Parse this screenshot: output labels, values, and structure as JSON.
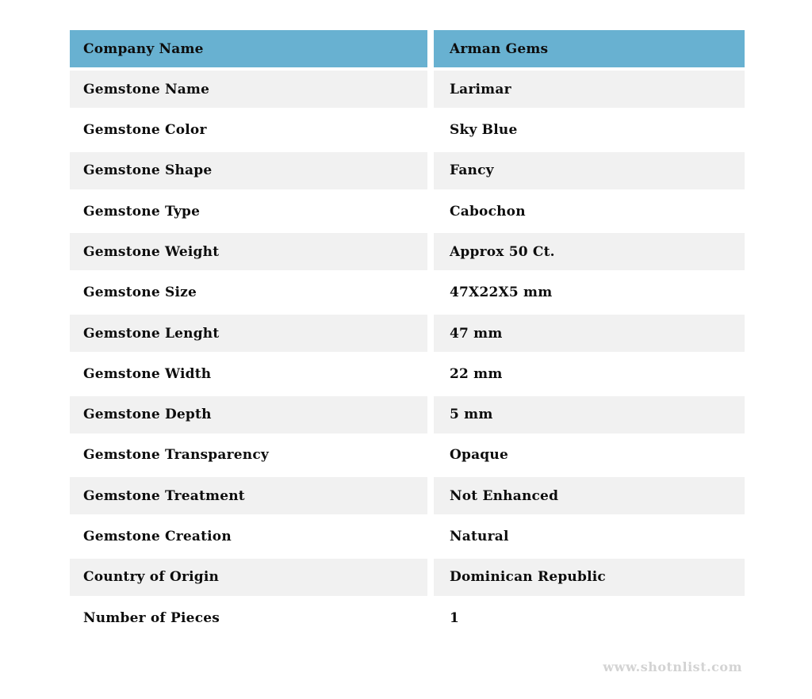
{
  "colors": {
    "header_bg": "#68b1d1",
    "stripe_bg": "#f1f1f1",
    "row_bg": "#ffffff",
    "text": "#0d0d0d",
    "watermark": "#d3d3d3"
  },
  "table": {
    "header": {
      "label": "Company Name",
      "value": "Arman Gems"
    },
    "rows": [
      {
        "label": "Gemstone Name",
        "value": "Larimar"
      },
      {
        "label": "Gemstone Color",
        "value": "Sky Blue"
      },
      {
        "label": "Gemstone Shape",
        "value": "Fancy"
      },
      {
        "label": "Gemstone Type",
        "value": "Cabochon"
      },
      {
        "label": "Gemstone Weight",
        "value": "Approx 50 Ct."
      },
      {
        "label": "Gemstone Size",
        "value": "47X22X5 mm"
      },
      {
        "label": "Gemstone Lenght",
        "value": "47 mm"
      },
      {
        "label": "Gemstone Width",
        "value": "22 mm"
      },
      {
        "label": "Gemstone Depth",
        "value": "5 mm"
      },
      {
        "label": "Gemstone Transparency",
        "value": "Opaque"
      },
      {
        "label": "Gemstone Treatment",
        "value": "Not Enhanced"
      },
      {
        "label": "Gemstone Creation",
        "value": "Natural"
      },
      {
        "label": "Country of Origin",
        "value": "Dominican Republic"
      },
      {
        "label": "Number of Pieces",
        "value": "1"
      }
    ]
  },
  "footer": {
    "watermark": "www.shotnlist.com"
  }
}
